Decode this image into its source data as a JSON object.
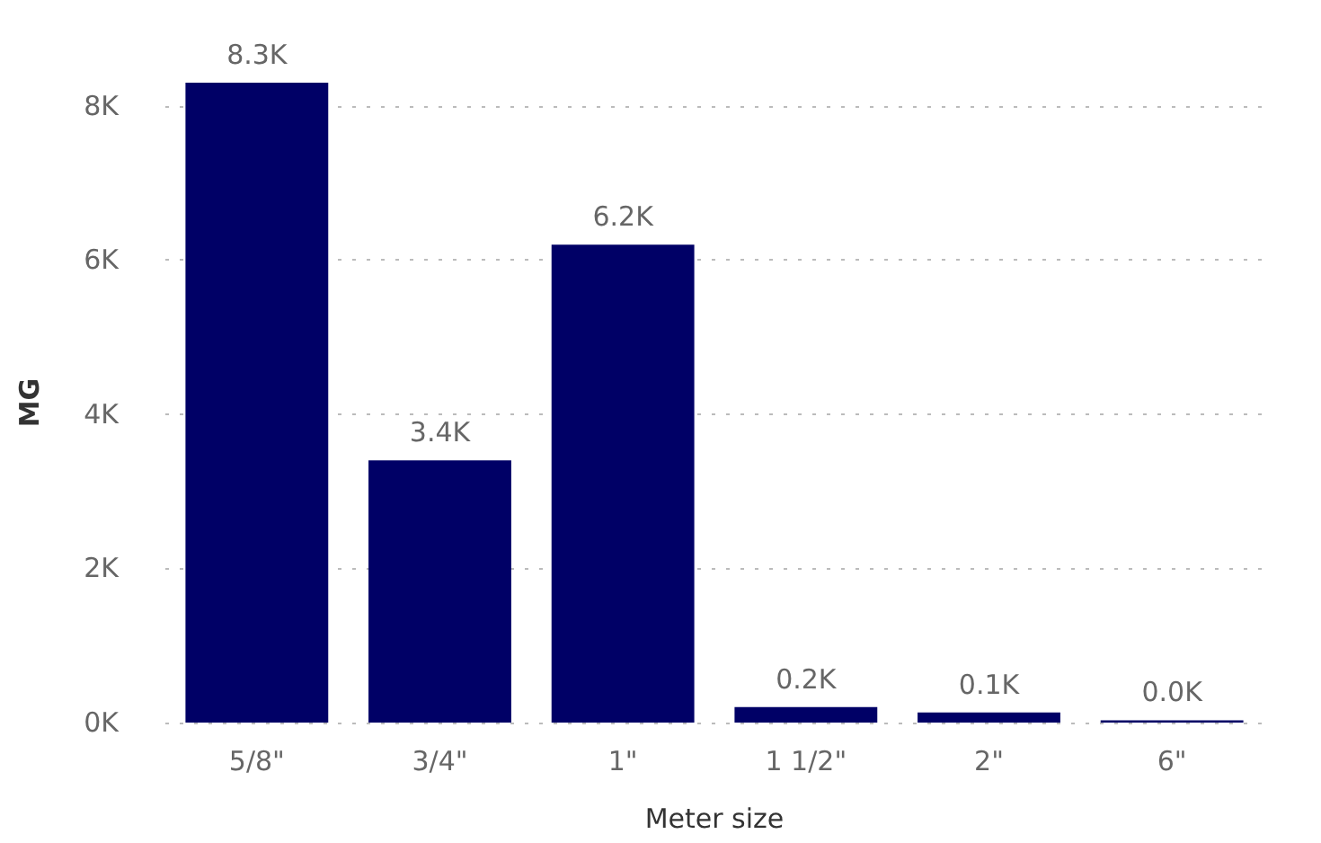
{
  "chart_data": {
    "type": "bar",
    "xlabel": "Meter size",
    "ylabel": "MG",
    "categories": [
      "5/8\"",
      "3/4\"",
      "1\"",
      "1 1/2\"",
      "2\"",
      "6\""
    ],
    "values": [
      8300,
      3400,
      6200,
      200,
      130,
      30
    ],
    "value_labels": [
      "8.3K",
      "3.4K",
      "6.2K",
      "0.2K",
      "0.1K",
      "0.0K"
    ],
    "color": "#000066",
    "ylim": [
      0,
      8300
    ],
    "yticks": [
      {
        "value": 0,
        "label": "0K"
      },
      {
        "value": 2000,
        "label": "2K"
      },
      {
        "value": 4000,
        "label": "4K"
      },
      {
        "value": 6000,
        "label": "6K"
      },
      {
        "value": 8000,
        "label": "8K"
      }
    ],
    "grid": "y"
  }
}
